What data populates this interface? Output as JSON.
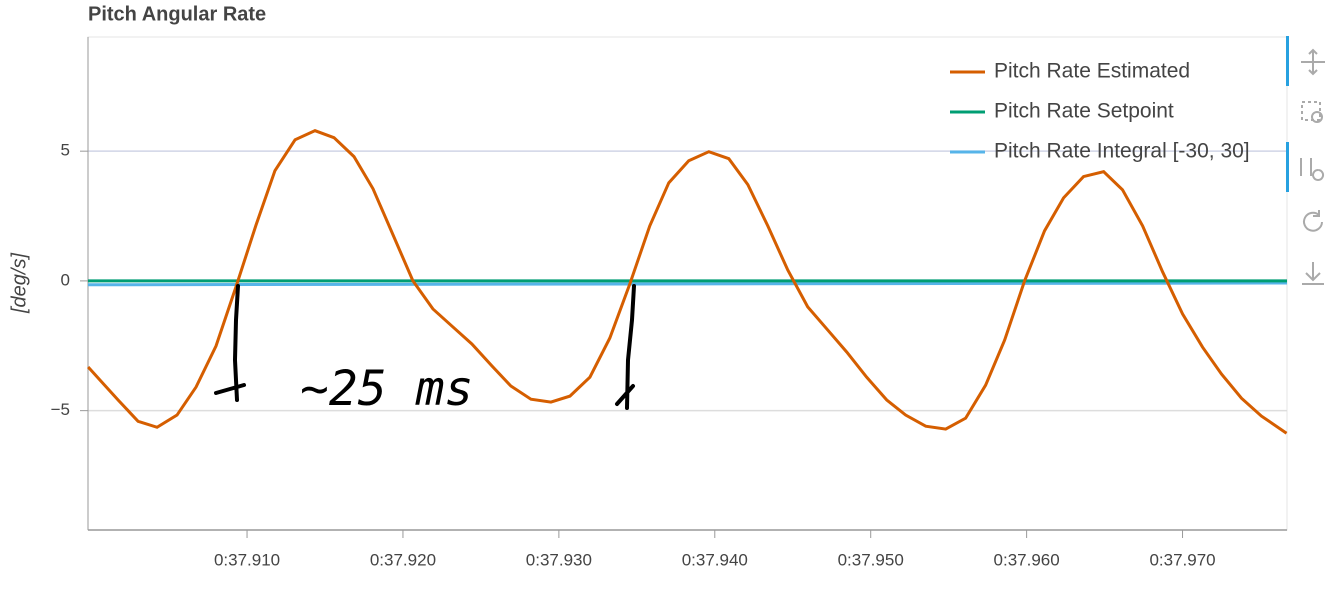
{
  "chart_data": {
    "type": "line",
    "title": "Pitch Angular Rate",
    "y_label": "[deg/s]",
    "annotation": "~25 ms",
    "xlim": [
      37.8998,
      37.9767
    ],
    "ylim": [
      -9.6,
      9.4
    ],
    "xticks": [
      {
        "value": 37.91,
        "label": "0:37.910"
      },
      {
        "value": 37.92,
        "label": "0:37.920"
      },
      {
        "value": 37.93,
        "label": "0:37.930"
      },
      {
        "value": 37.94,
        "label": "0:37.940"
      },
      {
        "value": 37.95,
        "label": "0:37.950"
      },
      {
        "value": 37.96,
        "label": "0:37.960"
      },
      {
        "value": 37.97,
        "label": "0:37.970"
      }
    ],
    "yticks": [
      {
        "value": -5,
        "label": "−5"
      },
      0,
      5
    ],
    "grid": true,
    "legend": "top-right",
    "series": [
      {
        "name": "Pitch Rate Estimated",
        "color": "#d55e00",
        "x": [
          37.89981,
          37.90173,
          37.90301,
          37.90423,
          37.90551,
          37.90673,
          37.90801,
          37.90929,
          37.91058,
          37.91179,
          37.91308,
          37.91436,
          37.91558,
          37.91686,
          37.91808,
          37.91936,
          37.92064,
          37.92192,
          37.92314,
          37.92442,
          37.92571,
          37.92692,
          37.92821,
          37.92949,
          37.93071,
          37.93199,
          37.93327,
          37.93455,
          37.93583,
          37.93705,
          37.93833,
          37.93962,
          37.9409,
          37.94212,
          37.9434,
          37.94468,
          37.94596,
          37.94724,
          37.94846,
          37.94974,
          37.95103,
          37.95224,
          37.95353,
          37.95481,
          37.95609,
          37.95737,
          37.95859,
          37.95987,
          37.96115,
          37.96237,
          37.96365,
          37.96494,
          37.96615,
          37.96744,
          37.96872,
          37.97,
          37.97128,
          37.9725,
          37.97378,
          37.97506,
          37.97667
        ],
        "values": [
          -3.32,
          -4.59,
          -5.41,
          -5.64,
          -5.17,
          -4.09,
          -2.51,
          -0.23,
          2.16,
          4.25,
          5.44,
          5.79,
          5.52,
          4.79,
          3.55,
          1.78,
          0,
          -1.08,
          -1.74,
          -2.43,
          -3.28,
          -4.05,
          -4.56,
          -4.67,
          -4.44,
          -3.71,
          -2.2,
          -0.12,
          2.12,
          3.78,
          4.63,
          4.98,
          4.71,
          3.71,
          2.12,
          0.42,
          -1.0,
          -1.89,
          -2.74,
          -3.71,
          -4.59,
          -5.17,
          -5.6,
          -5.71,
          -5.29,
          -4.02,
          -2.28,
          0,
          1.93,
          3.2,
          4.02,
          4.21,
          3.51,
          2.12,
          0.35,
          -1.27,
          -2.55,
          -3.59,
          -4.52,
          -5.21,
          -5.87
        ]
      },
      {
        "name": "Pitch Rate Setpoint",
        "color": "#009e73",
        "x": [
          37.8998,
          37.9767
        ],
        "values": [
          0,
          0
        ]
      },
      {
        "name": "Pitch Rate Integral [-30, 30]",
        "color": "#56b4e9",
        "x": [
          37.8998,
          37.9767
        ],
        "values": [
          -0.15,
          -0.08
        ]
      }
    ]
  }
}
